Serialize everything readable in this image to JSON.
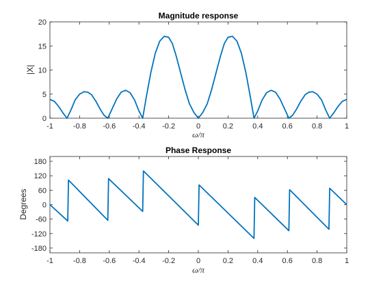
{
  "colors": {
    "line": "#0072BD",
    "axis": "#262626",
    "background": "#ffffff"
  },
  "chart_data": [
    {
      "type": "line",
      "title": "Magnitude response",
      "xlabel": "ω/π",
      "ylabel": "|X|",
      "xlim": [
        -1,
        1
      ],
      "ylim": [
        0,
        20
      ],
      "xticks": [
        -1,
        -0.8,
        -0.6,
        -0.4,
        -0.2,
        0,
        0.2,
        0.4,
        0.6,
        0.8,
        1
      ],
      "xtick_labels": [
        "-1",
        "-0.8",
        "-0.6",
        "-0.4",
        "-0.2",
        "0",
        "0.2",
        "0.4",
        "0.6",
        "0.8",
        "1"
      ],
      "yticks": [
        0,
        5,
        10,
        15,
        20
      ],
      "ytick_labels": [
        "0",
        "5",
        "10",
        "15",
        "20"
      ],
      "grid": false,
      "series": [
        {
          "color": "#0072BD",
          "x": [
            -1,
            -0.97,
            -0.94,
            -0.91,
            -0.885,
            -0.86,
            -0.83,
            -0.8,
            -0.77,
            -0.745,
            -0.72,
            -0.69,
            -0.66,
            -0.635,
            -0.61,
            -0.58,
            -0.55,
            -0.52,
            -0.49,
            -0.46,
            -0.43,
            -0.4,
            -0.375,
            -0.35,
            -0.32,
            -0.29,
            -0.26,
            -0.23,
            -0.2,
            -0.175,
            -0.15,
            -0.12,
            -0.09,
            -0.06,
            -0.03,
            0,
            0.03,
            0.06,
            0.09,
            0.12,
            0.15,
            0.175,
            0.2,
            0.23,
            0.26,
            0.29,
            0.32,
            0.35,
            0.375,
            0.4,
            0.43,
            0.46,
            0.49,
            0.52,
            0.55,
            0.58,
            0.61,
            0.635,
            0.66,
            0.69,
            0.72,
            0.745,
            0.77,
            0.8,
            0.83,
            0.86,
            0.885,
            0.91,
            0.94,
            0.97,
            1
          ],
          "y": [
            3.9,
            3.5,
            2.4,
            1.0,
            0,
            1.6,
            3.8,
            5.0,
            5.5,
            5.4,
            4.9,
            3.5,
            1.8,
            0.6,
            0,
            2.0,
            4.0,
            5.4,
            5.8,
            5.3,
            3.8,
            1.5,
            0,
            4.5,
            9.5,
            13.5,
            16.0,
            17.0,
            16.8,
            15.5,
            13.0,
            9.5,
            6.0,
            3.0,
            1.2,
            0,
            1.2,
            3.0,
            6.0,
            9.5,
            13.0,
            15.5,
            16.8,
            17.0,
            16.0,
            13.5,
            9.5,
            4.5,
            0,
            1.5,
            3.8,
            5.3,
            5.8,
            5.4,
            4.0,
            2.0,
            0,
            0.6,
            1.8,
            3.5,
            4.9,
            5.4,
            5.5,
            5.0,
            3.8,
            1.6,
            0,
            1.0,
            2.4,
            3.5,
            3.9
          ]
        }
      ]
    },
    {
      "type": "line",
      "title": "Phase Response",
      "xlabel": "ω/π",
      "ylabel": "Degrees",
      "xlim": [
        -1,
        1
      ],
      "ylim": [
        -200,
        200
      ],
      "xticks": [
        -1,
        -0.8,
        -0.6,
        -0.4,
        -0.2,
        0,
        0.2,
        0.4,
        0.6,
        0.8,
        1
      ],
      "xtick_labels": [
        "-1",
        "-0.8",
        "-0.6",
        "-0.4",
        "-0.2",
        "0",
        "0.2",
        "0.4",
        "0.6",
        "0.8",
        "1"
      ],
      "yticks": [
        -180,
        -120,
        -60,
        0,
        60,
        120,
        180
      ],
      "ytick_labels": [
        "-180",
        "-120",
        "-60",
        "0",
        "60",
        "120",
        "180"
      ],
      "grid": false,
      "series": [
        {
          "color": "#0072BD",
          "x": [
            -1,
            -0.88,
            -0.875,
            -0.61,
            -0.605,
            -0.375,
            -0.37,
            0,
            0.005,
            0.375,
            0.38,
            0.61,
            0.615,
            0.88,
            0.885,
            1
          ],
          "y": [
            0,
            -68,
            102,
            -65,
            108,
            -28,
            140,
            -85,
            82,
            -140,
            30,
            -108,
            62,
            -102,
            68,
            0
          ]
        }
      ]
    }
  ]
}
